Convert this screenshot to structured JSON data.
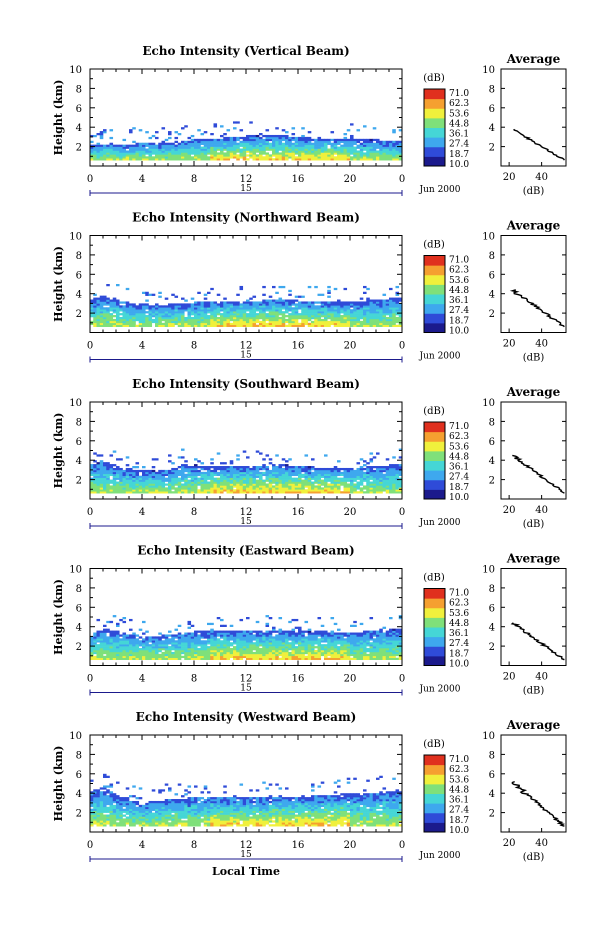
{
  "chart_data": [
    {
      "type": "heatmap",
      "title": "Echo Intensity (Vertical Beam)",
      "ylabel": "Height (km)",
      "xlim": [
        0,
        24
      ],
      "ylim": [
        0,
        10
      ],
      "xticks": [
        "0",
        "4",
        "8",
        "12",
        "16",
        "20",
        "0"
      ],
      "yticks": [
        "2",
        "4",
        "6",
        "8",
        "10"
      ],
      "date_label": "15",
      "month_label": "Jun 2000",
      "colorbar": {
        "unit": "(dB)",
        "ticks": [
          "71.0",
          "62.3",
          "53.6",
          "44.8",
          "36.1",
          "27.4",
          "18.7",
          "10.0"
        ]
      },
      "profile": {
        "title": "Average",
        "xlabel": "(dB)",
        "xticks": [
          "20",
          "40"
        ],
        "yticks": [
          "2",
          "4",
          "6",
          "8",
          "10"
        ]
      },
      "echo_tops_km": [
        2.1,
        2.3,
        2.2,
        2.3,
        2.4,
        2.3,
        2.4,
        2.6,
        2.7,
        2.8,
        2.9,
        3.0,
        3.1,
        3.1,
        3.2,
        3.1,
        3.0,
        2.9,
        2.9,
        2.8,
        2.8,
        2.7,
        2.7,
        2.6,
        2.6
      ]
    },
    {
      "type": "heatmap",
      "title": "Echo Intensity (Northward Beam)",
      "ylabel": "Height (km)",
      "xlim": [
        0,
        24
      ],
      "ylim": [
        0,
        10
      ],
      "xticks": [
        "0",
        "4",
        "8",
        "12",
        "16",
        "20",
        "0"
      ],
      "yticks": [
        "2",
        "4",
        "6",
        "8",
        "10"
      ],
      "date_label": "15",
      "month_label": "Jun 2000",
      "colorbar": {
        "unit": "(dB)",
        "ticks": [
          "71.0",
          "62.3",
          "53.6",
          "44.8",
          "36.1",
          "27.4",
          "18.7",
          "10.0"
        ]
      },
      "profile": {
        "title": "Average",
        "xlabel": "(dB)",
        "xticks": [
          "20",
          "40"
        ],
        "yticks": [
          "2",
          "4",
          "6",
          "8",
          "10"
        ]
      },
      "echo_tops_km": [
        3.4,
        3.8,
        3.4,
        3.0,
        3.0,
        2.8,
        2.9,
        3.0,
        3.1,
        3.2,
        3.2,
        3.3,
        3.3,
        3.3,
        3.4,
        3.4,
        3.3,
        3.2,
        3.2,
        3.1,
        3.2,
        3.3,
        3.4,
        3.5,
        3.6
      ]
    },
    {
      "type": "heatmap",
      "title": "Echo Intensity (Southward Beam)",
      "ylabel": "Height (km)",
      "xlim": [
        0,
        24
      ],
      "ylim": [
        0,
        10
      ],
      "xticks": [
        "0",
        "4",
        "8",
        "12",
        "16",
        "20",
        "0"
      ],
      "yticks": [
        "2",
        "4",
        "6",
        "8",
        "10"
      ],
      "date_label": "15",
      "month_label": "Jun 2000",
      "colorbar": {
        "unit": "(dB)",
        "ticks": [
          "71.0",
          "62.3",
          "53.6",
          "44.8",
          "36.1",
          "27.4",
          "18.7",
          "10.0"
        ]
      },
      "profile": {
        "title": "Average",
        "xlabel": "(dB)",
        "xticks": [
          "20",
          "40"
        ],
        "yticks": [
          "2",
          "4",
          "6",
          "8",
          "10"
        ]
      },
      "echo_tops_km": [
        3.6,
        3.9,
        3.4,
        3.0,
        3.0,
        2.9,
        3.0,
        3.6,
        3.5,
        3.4,
        3.4,
        3.4,
        3.4,
        3.4,
        3.5,
        3.5,
        3.4,
        3.3,
        3.3,
        3.2,
        3.2,
        3.3,
        3.4,
        3.5,
        3.6
      ]
    },
    {
      "type": "heatmap",
      "title": "Echo Intensity (Eastward Beam)",
      "ylabel": "Height (km)",
      "xlim": [
        0,
        24
      ],
      "ylim": [
        0,
        10
      ],
      "xticks": [
        "0",
        "4",
        "8",
        "12",
        "16",
        "20",
        "0"
      ],
      "yticks": [
        "2",
        "4",
        "6",
        "8",
        "10"
      ],
      "date_label": "15",
      "month_label": "Jun 2000",
      "colorbar": {
        "unit": "(dB)",
        "ticks": [
          "71.0",
          "62.3",
          "53.6",
          "44.8",
          "36.1",
          "27.4",
          "18.7",
          "10.0"
        ]
      },
      "profile": {
        "title": "Average",
        "xlabel": "(dB)",
        "xticks": [
          "20",
          "40"
        ],
        "yticks": [
          "2",
          "4",
          "6",
          "8",
          "10"
        ]
      },
      "echo_tops_km": [
        3.3,
        3.8,
        3.5,
        3.2,
        3.0,
        3.0,
        3.2,
        3.4,
        3.5,
        3.5,
        3.6,
        3.6,
        3.6,
        3.6,
        3.6,
        3.6,
        3.5,
        3.5,
        3.5,
        3.4,
        3.4,
        3.5,
        3.6,
        3.7,
        3.8
      ]
    },
    {
      "type": "heatmap",
      "title": "Echo Intensity (Westward Beam)",
      "ylabel": "Height (km)",
      "xlabel": "Local Time",
      "xlim": [
        0,
        24
      ],
      "ylim": [
        0,
        10
      ],
      "xticks": [
        "0",
        "4",
        "8",
        "12",
        "16",
        "20",
        "0"
      ],
      "yticks": [
        "2",
        "4",
        "6",
        "8",
        "10"
      ],
      "date_label": "15",
      "month_label": "Jun 2000",
      "colorbar": {
        "unit": "(dB)",
        "ticks": [
          "71.0",
          "62.3",
          "53.6",
          "44.8",
          "36.1",
          "27.4",
          "18.7",
          "10.0"
        ]
      },
      "profile": {
        "title": "Average",
        "xlabel": "(dB)",
        "xticks": [
          "20",
          "40"
        ],
        "yticks": [
          "2",
          "4",
          "6",
          "8",
          "10"
        ]
      },
      "echo_tops_km": [
        4.2,
        4.6,
        3.8,
        3.2,
        3.0,
        3.2,
        3.4,
        3.4,
        3.6,
        3.6,
        3.6,
        3.5,
        3.5,
        3.5,
        3.6,
        3.6,
        3.6,
        3.7,
        3.8,
        3.9,
        4.0,
        4.0,
        4.1,
        4.2,
        4.3
      ]
    }
  ],
  "colors": {
    "scale": [
      "#1b1a8c",
      "#2f4bd8",
      "#3ea8ee",
      "#45d6d6",
      "#7fe07a",
      "#f0f03c",
      "#f5a030",
      "#e0301e"
    ]
  }
}
